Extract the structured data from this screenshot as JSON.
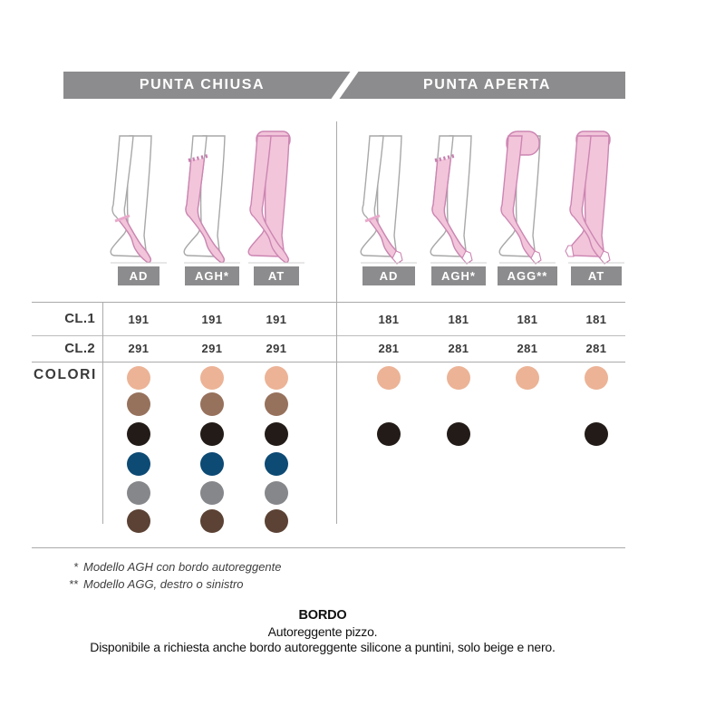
{
  "header": {
    "closed_label": "PUNTA CHIUSA",
    "open_label": "PUNTA APERTA"
  },
  "columns": [
    {
      "id": "closed-ad",
      "section": "punta-chiusa",
      "label": "AD"
    },
    {
      "id": "closed-agh",
      "section": "punta-chiusa",
      "label": "AGH*"
    },
    {
      "id": "closed-at",
      "section": "punta-chiusa",
      "label": "AT"
    },
    {
      "id": "open-ad",
      "section": "punta-aperta",
      "label": "AD"
    },
    {
      "id": "open-agh",
      "section": "punta-aperta",
      "label": "AGH*"
    },
    {
      "id": "open-agg",
      "section": "punta-aperta",
      "label": "AGG**"
    },
    {
      "id": "open-at",
      "section": "punta-aperta",
      "label": "AT"
    }
  ],
  "table": {
    "row1_label": "CL.1",
    "row2_label": "CL.2",
    "colors_label": "COLORI",
    "cl1": [
      "191",
      "191",
      "191",
      "181",
      "181",
      "181",
      "181"
    ],
    "cl2": [
      "291",
      "291",
      "291",
      "281",
      "281",
      "281",
      "281"
    ]
  },
  "colors": {
    "order": [
      "beige",
      "brown",
      "black",
      "navy",
      "gray",
      "darkbrown"
    ],
    "palette": {
      "beige": "#ecb396",
      "brown": "#96715c",
      "black": "#221b17",
      "navy": "#0d4a74",
      "gray": "#85878a",
      "darkbrown": "#5b4234"
    },
    "by_column": [
      [
        "beige",
        "brown",
        "black",
        "navy",
        "gray",
        "darkbrown"
      ],
      [
        "beige",
        "brown",
        "black",
        "navy",
        "gray",
        "darkbrown"
      ],
      [
        "beige",
        "brown",
        "black",
        "navy",
        "gray",
        "darkbrown"
      ],
      [
        "beige",
        "black"
      ],
      [
        "beige",
        "black"
      ],
      [
        "beige"
      ],
      [
        "beige",
        "black"
      ]
    ]
  },
  "footnotes": [
    {
      "marker": "*",
      "text": "Modello AGH con bordo autoreggente"
    },
    {
      "marker": "**",
      "text": "Modello AGG, destro o sinistro"
    }
  ],
  "bordo": {
    "title": "BORDO",
    "line1": "Autoreggente pizzo.",
    "line2": "Disponibile a richiesta anche bordo autoreggente silicone a puntini, solo beige e nero."
  },
  "ui_colors": {
    "bar_gray": "#8c8c8e",
    "stocking_pink": "#f2c5da",
    "stocking_outline": "#cc85b2",
    "line_gray": "#aaaaaa"
  }
}
